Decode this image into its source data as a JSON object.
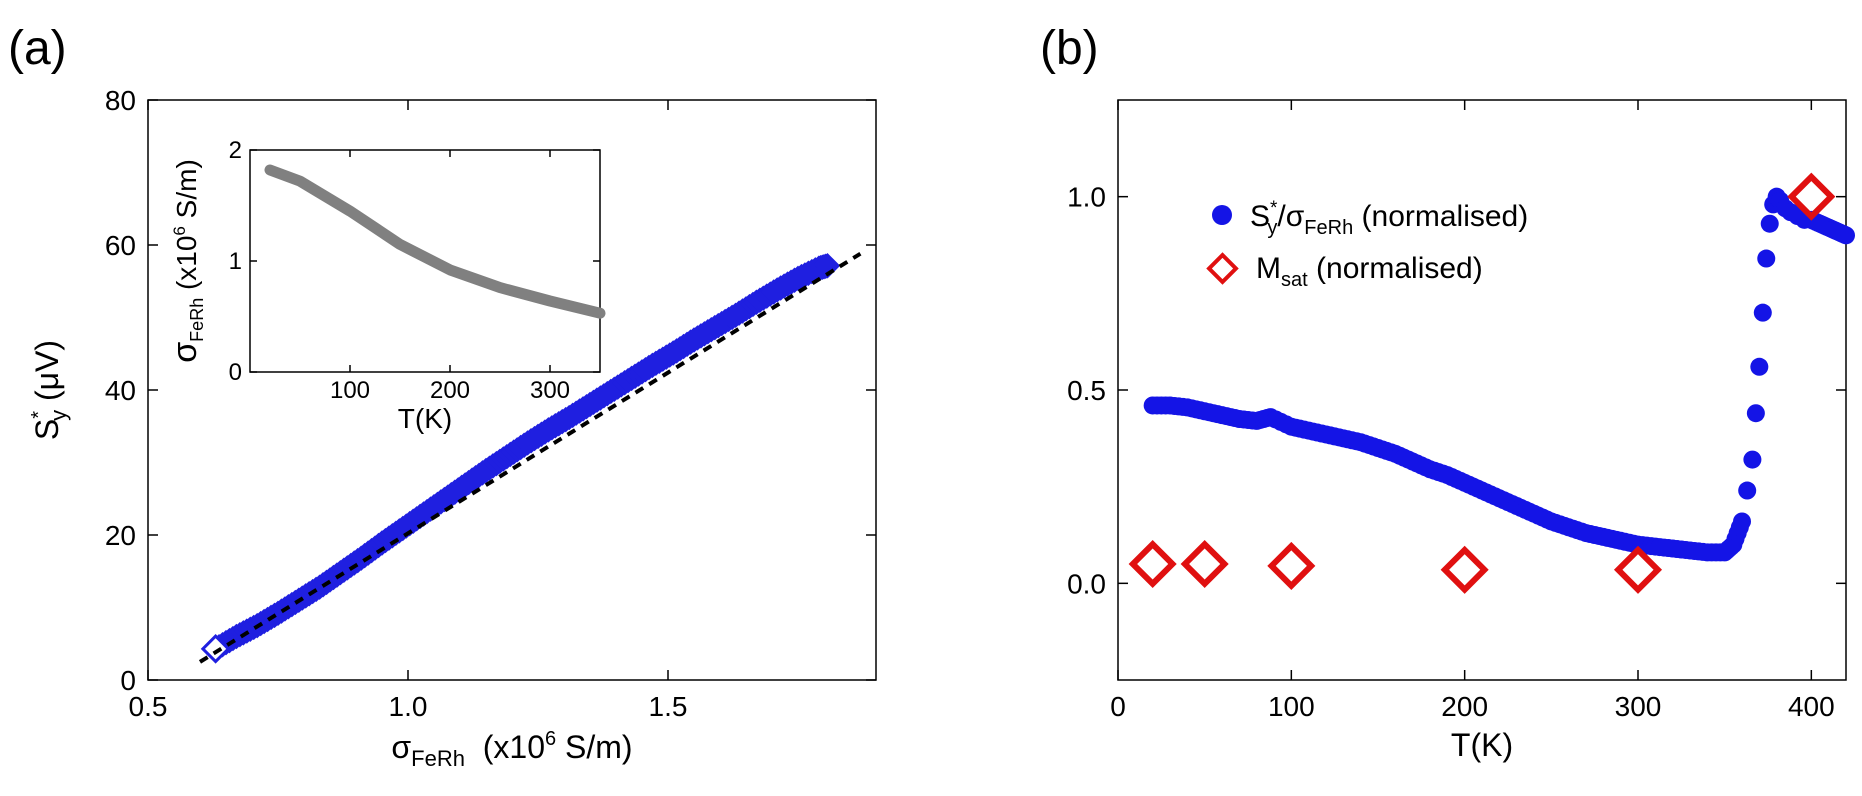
{
  "panel_labels": {
    "a": "(a)",
    "b": "(b)"
  },
  "chart_data": [
    {
      "id": "a",
      "type": "scatter",
      "xlim": [
        0.5,
        1.9
      ],
      "ylim": [
        0,
        80
      ],
      "xticks": [
        "0.5",
        "1.0",
        "1.5"
      ],
      "xtick_values": [
        0.5,
        1.0,
        1.5
      ],
      "yticks": [
        "0",
        "20",
        "40",
        "60",
        "80"
      ],
      "ytick_values": [
        0,
        20,
        40,
        60,
        80
      ],
      "xlabel_main": "σ",
      "xlabel_sub": "FeRh",
      "xlabel_unit_pre": "  (x10",
      "xlabel_unit_sup": "6",
      "xlabel_unit_post": " S/m)",
      "ylabel_main": "S",
      "ylabel_sup": "*",
      "ylabel_sub": "y",
      "ylabel_unit": " (μV)",
      "series_color": "#1f1fe0",
      "x": [
        0.63,
        0.67,
        0.71,
        0.75,
        0.79,
        0.83,
        0.87,
        0.91,
        0.95,
        0.99,
        1.03,
        1.07,
        1.11,
        1.15,
        1.19,
        1.23,
        1.27,
        1.31,
        1.35,
        1.39,
        1.43,
        1.47,
        1.51,
        1.55,
        1.59,
        1.63,
        1.67,
        1.71,
        1.75,
        1.79,
        1.81
      ],
      "y": [
        4.3,
        6.0,
        7.5,
        9.2,
        11.0,
        12.8,
        14.8,
        16.8,
        18.9,
        20.9,
        22.9,
        24.9,
        26.9,
        28.9,
        30.8,
        32.7,
        34.5,
        36.2,
        38.0,
        39.8,
        41.6,
        43.4,
        45.1,
        46.9,
        48.6,
        50.3,
        52.1,
        53.8,
        55.4,
        56.8,
        57.2
      ],
      "open_marker": {
        "x": 0.63,
        "y": 4.3
      },
      "fit": {
        "x": [
          0.6,
          1.87
        ],
        "y": [
          2.5,
          58.8
        ],
        "color": "#000000"
      },
      "inset": {
        "type": "line",
        "xlim": [
          0,
          350
        ],
        "ylim": [
          0,
          2
        ],
        "xticks": [
          "100",
          "200",
          "300"
        ],
        "xtick_values": [
          100,
          200,
          300
        ],
        "yticks": [
          "0",
          "1",
          "2"
        ],
        "ytick_values": [
          0,
          1,
          2
        ],
        "xlabel": "T(K)",
        "ylabel_main": "σ",
        "ylabel_sub": "FeRh",
        "ylabel_unit_pre": " (x10",
        "ylabel_unit_sup": "6",
        "ylabel_unit_post": " S/m)",
        "color": "#808080",
        "x": [
          20,
          50,
          100,
          150,
          200,
          250,
          300,
          350
        ],
        "y": [
          1.82,
          1.72,
          1.45,
          1.15,
          0.92,
          0.76,
          0.64,
          0.53
        ]
      }
    },
    {
      "id": "b",
      "type": "scatter",
      "xlim": [
        0,
        420
      ],
      "ylim": [
        -0.25,
        1.25
      ],
      "xticks": [
        "0",
        "100",
        "200",
        "300",
        "400"
      ],
      "xtick_values": [
        0,
        100,
        200,
        300,
        400
      ],
      "yticks": [
        "0.0",
        "0.5",
        "1.0"
      ],
      "ytick_values": [
        0.0,
        0.5,
        1.0
      ],
      "xlabel": "T(K)",
      "series": [
        {
          "name": "S*y/σFeRh (normalised)",
          "legend_main": "S",
          "legend_sup": "*",
          "legend_sub": "y",
          "legend_mid": "/σ",
          "legend_sub2": "FeRh",
          "legend_post": " (normalised)",
          "marker": "circle",
          "color": "#1414e6",
          "x": [
            20,
            30,
            40,
            50,
            60,
            70,
            80,
            88,
            100,
            110,
            120,
            130,
            140,
            150,
            160,
            170,
            180,
            190,
            200,
            210,
            220,
            230,
            240,
            250,
            260,
            270,
            280,
            290,
            300,
            310,
            320,
            330,
            340,
            350,
            355,
            360,
            363,
            366,
            368,
            370,
            372,
            374,
            376,
            378,
            380,
            382,
            385,
            388,
            392,
            396,
            400,
            405,
            410,
            415,
            420
          ],
          "y": [
            0.46,
            0.46,
            0.455,
            0.445,
            0.435,
            0.425,
            0.42,
            0.43,
            0.405,
            0.395,
            0.385,
            0.375,
            0.365,
            0.35,
            0.335,
            0.315,
            0.295,
            0.28,
            0.26,
            0.24,
            0.22,
            0.2,
            0.18,
            0.16,
            0.145,
            0.13,
            0.12,
            0.11,
            0.1,
            0.095,
            0.09,
            0.085,
            0.08,
            0.08,
            0.1,
            0.16,
            0.24,
            0.32,
            0.44,
            0.56,
            0.7,
            0.84,
            0.93,
            0.98,
            1.0,
            0.99,
            0.97,
            0.96,
            0.95,
            0.94,
            0.94,
            0.93,
            0.92,
            0.91,
            0.9
          ]
        },
        {
          "name": "Msat (normalised)",
          "legend_main": "M",
          "legend_sub": "sat",
          "legend_post": " (normalised)",
          "marker": "diamond-open",
          "color": "#e01010",
          "x": [
            20,
            50,
            100,
            200,
            300,
            400
          ],
          "y": [
            0.05,
            0.05,
            0.045,
            0.035,
            0.035,
            1.0
          ]
        }
      ]
    }
  ]
}
